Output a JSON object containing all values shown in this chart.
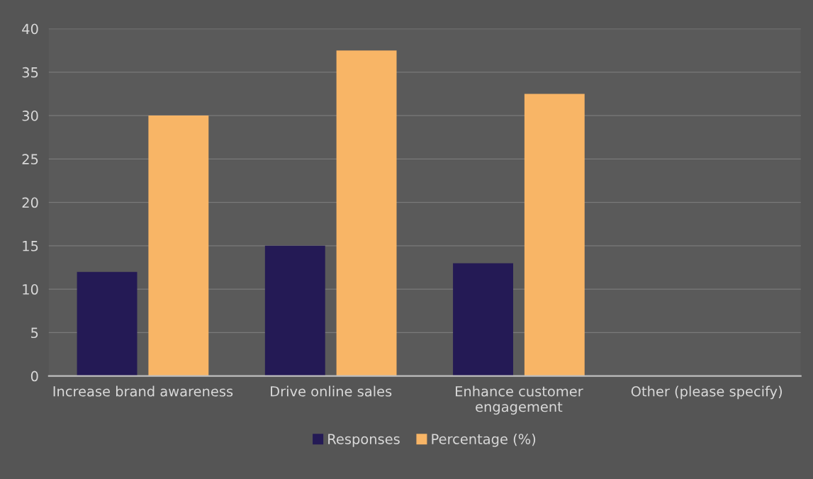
{
  "chart_data": {
    "type": "bar",
    "categories": [
      "Increase brand awareness",
      "Drive online sales",
      "Enhance customer\nengagement",
      "Other (please specify)"
    ],
    "series": [
      {
        "name": "Responses",
        "color": "#241a55",
        "values": [
          12,
          15,
          13,
          0
        ]
      },
      {
        "name": "Percentage (%)",
        "color": "#f8b566",
        "values": [
          30,
          37.5,
          32.5,
          0
        ]
      }
    ],
    "ylim": [
      0,
      40
    ],
    "yticks": [
      0,
      5,
      10,
      15,
      20,
      25,
      30,
      35,
      40
    ],
    "grid": "y",
    "legend": "bottom"
  }
}
